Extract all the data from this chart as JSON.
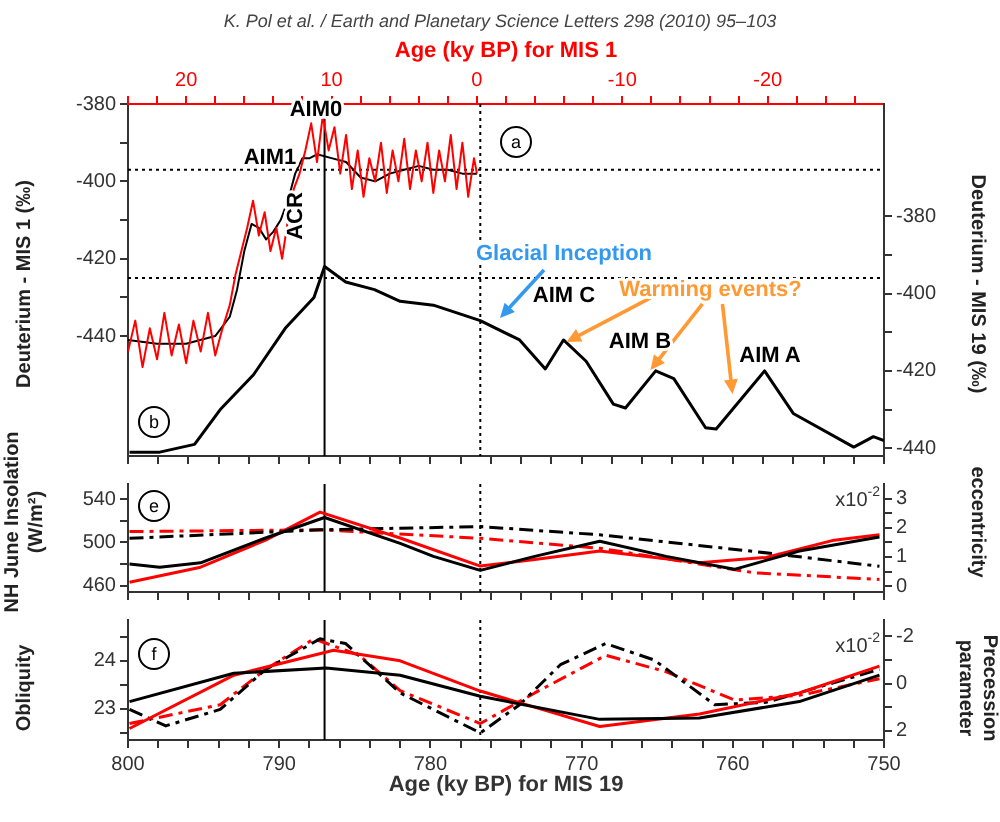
{
  "chart_data": [
    {
      "type": "line",
      "x2label": "Age (ky BP) for MIS 1",
      "ylabel": "Deuterium - MIS 1 (‰)",
      "y2label": "Deuterium - MIS 19 (‰)",
      "xlim": [
        800,
        750
      ],
      "xticks": [
        800,
        {
          "value": 798,
          "label": null
        },
        {
          "value": 796,
          "label": null
        },
        {
          "value": 794,
          "label": null
        },
        {
          "value": 792,
          "label": null
        },
        790,
        {
          "value": 788,
          "label": null
        },
        {
          "value": 786,
          "label": null
        },
        {
          "value": 784,
          "label": null
        },
        {
          "value": 782,
          "label": null
        },
        780,
        {
          "value": 778,
          "label": null
        },
        {
          "value": 776,
          "label": null
        },
        {
          "value": 774,
          "label": null
        },
        {
          "value": 772,
          "label": null
        },
        770,
        {
          "value": 768,
          "label": null
        },
        {
          "value": 766,
          "label": null
        },
        {
          "value": 764,
          "label": null
        },
        {
          "value": 762,
          "label": null
        },
        760,
        {
          "value": 758,
          "label": null
        },
        {
          "value": 756,
          "label": null
        },
        {
          "value": 754,
          "label": null
        },
        {
          "value": 752,
          "label": null
        },
        750
      ],
      "x2lim": [
        24,
        -28
      ],
      "x2ticks": [
        {
          "value": 24,
          "label": null
        },
        {
          "value": 22,
          "label": null
        },
        20,
        {
          "value": 18,
          "label": null
        },
        {
          "value": 16,
          "label": null
        },
        {
          "value": 14,
          "label": null
        },
        {
          "value": 12,
          "label": null
        },
        10,
        {
          "value": 8,
          "label": null
        },
        {
          "value": 6,
          "label": null
        },
        {
          "value": 4,
          "label": null
        },
        {
          "value": 2,
          "label": null
        },
        0,
        {
          "value": -2,
          "label": null
        },
        {
          "value": -4,
          "label": null
        },
        {
          "value": -6,
          "label": null
        },
        {
          "value": -8,
          "label": null
        },
        -10,
        {
          "value": -12,
          "label": null
        },
        {
          "value": -14,
          "label": null
        },
        {
          "value": -16,
          "label": null
        },
        {
          "value": -18,
          "label": null
        },
        -20,
        {
          "value": -22,
          "label": null
        },
        {
          "value": -24,
          "label": null
        },
        {
          "value": -26,
          "label": null
        }
      ],
      "ylim": [
        -471,
        -380
      ],
      "yticks": [
        -380,
        {
          "value": -390,
          "label": null
        },
        -400,
        {
          "value": -410,
          "label": null
        },
        -420,
        {
          "value": -430,
          "label": null
        },
        -440
      ],
      "y2lim": [
        -442,
        -351
      ],
      "y2ticks": [
        -380,
        {
          "value": -390,
          "label": null
        },
        -400,
        {
          "value": -410,
          "label": null
        },
        -420,
        {
          "value": -430,
          "label": null
        },
        -440
      ],
      "tick_labels": "y",
      "grid": false,
      "legend": false,
      "series": [
        {
          "color": "#ff0000",
          "axis": "x2",
          "x": [
            24,
            23.5,
            23,
            22.5,
            22,
            21.5,
            21,
            20.5,
            20,
            19.5,
            19,
            18.5,
            18,
            17.5,
            17,
            16.6,
            16.2,
            15.8,
            15.4,
            15,
            14.6,
            14.2,
            13.8,
            13.4,
            13,
            12.6,
            12.2,
            11.8,
            11.4,
            11,
            10.6,
            10.2,
            9.8,
            9.4,
            9,
            8.6,
            8.2,
            7.8,
            7.4,
            7,
            6.6,
            6.2,
            5.8,
            5.4,
            5,
            4.6,
            4.2,
            3.8,
            3.4,
            3,
            2.6,
            2.2,
            1.8,
            1.4,
            1,
            0.6,
            0.2,
            0
          ],
          "values": [
            -444,
            -436,
            -448,
            -438,
            -446,
            -434,
            -445,
            -437,
            -447,
            -436,
            -444,
            -434,
            -445,
            -438,
            -432,
            -424,
            -418,
            -412,
            -405,
            -414,
            -408,
            -418,
            -412,
            -420,
            -410,
            -402,
            -398,
            -392,
            -385,
            -395,
            -383,
            -392,
            -386,
            -398,
            -388,
            -402,
            -392,
            -404,
            -394,
            -400,
            -390,
            -403,
            -392,
            -400,
            -389,
            -402,
            -392,
            -400,
            -390,
            -403,
            -392,
            -400,
            -388,
            -402,
            -390,
            -404,
            -394,
            -398
          ]
        },
        {
          "color": "#000000",
          "axis": "x2",
          "x": [
            24,
            22,
            20,
            18,
            17,
            16.5,
            16,
            15.5,
            15,
            14.5,
            14,
            13.5,
            13,
            12.5,
            12,
            11.5,
            11,
            10,
            9,
            8,
            7,
            6,
            5,
            4,
            3,
            2,
            1,
            0
          ],
          "values": [
            -441,
            -442,
            -442,
            -440,
            -435,
            -428,
            -418,
            -411,
            -412,
            -415,
            -413,
            -410,
            -405,
            -398,
            -394,
            -394,
            -393,
            -394,
            -395,
            -399,
            -400,
            -398,
            -397,
            -396,
            -397,
            -397,
            -398,
            -398
          ]
        },
        {
          "color": "#000000",
          "axis": "y2",
          "x": [
            799.9,
            797.9,
            795.6,
            793.9,
            791.7,
            789.6,
            787.7,
            787,
            785.6,
            783.7,
            782,
            779.8,
            776.7,
            774.1,
            772.4,
            771.2,
            769.7,
            767.9,
            767.1,
            765.1,
            763.9,
            761.8,
            761.1,
            757.9,
            756,
            752,
            750.7,
            750
          ],
          "values": [
            -441,
            -441,
            -439,
            -430,
            -421,
            -409,
            -401,
            -393,
            -397,
            -399,
            -402,
            -403,
            -407,
            -412,
            -419.5,
            -412,
            -417.5,
            -428.6,
            -429.6,
            -420,
            -422,
            -434.7,
            -435,
            -420,
            -431,
            -439.7,
            -437,
            -438
          ]
        }
      ],
      "ref_lines": [
        {
          "axis": "x",
          "value": 787,
          "line_style": "solid",
          "color": "#000000"
        },
        {
          "axis": "x",
          "value": 776.7,
          "line_style": "dotted",
          "color": "#000000"
        },
        {
          "axis": "y",
          "value": -397,
          "line_style": "dotted",
          "color": "#000000"
        },
        {
          "axis": "y2",
          "value": -396,
          "line_style": "dotted",
          "color": "#000000"
        }
      ],
      "annotations": [
        "K. Pol et al. / Earth and Planetary Science Letters 298 (2010) 95–103",
        "a",
        "b",
        "AIM0",
        "AIM1",
        "ACR",
        "Glacial Inception",
        {
          "text": "Warming events?",
          "x": 771,
          "y": -441
        },
        "AIM C",
        "AIM B",
        "AIM A"
      ]
    },
    {
      "type": "line",
      "ylabel": "NH June Insolation (W/m²)",
      "y2label": "eccentricity",
      "xlim": [
        800,
        750
      ],
      "xticks": [
        800,
        {
          "value": 798,
          "label": null
        },
        {
          "value": 796,
          "label": null
        },
        {
          "value": 794,
          "label": null
        },
        {
          "value": 792,
          "label": null
        },
        790,
        {
          "value": 788,
          "label": null
        },
        {
          "value": 786,
          "label": null
        },
        {
          "value": 784,
          "label": null
        },
        {
          "value": 782,
          "label": null
        },
        780,
        {
          "value": 778,
          "label": null
        },
        {
          "value": 776,
          "label": null
        },
        {
          "value": 774,
          "label": null
        },
        {
          "value": 772,
          "label": null
        },
        770,
        {
          "value": 768,
          "label": null
        },
        {
          "value": 766,
          "label": null
        },
        {
          "value": 764,
          "label": null
        },
        {
          "value": 762,
          "label": null
        },
        760,
        {
          "value": 758,
          "label": null
        },
        {
          "value": 756,
          "label": null
        },
        {
          "value": 754,
          "label": null
        },
        {
          "value": 752,
          "label": null
        },
        750
      ],
      "ylim": [
        454,
        554
      ],
      "yticks": [
        460,
        {
          "value": 480,
          "label": null
        },
        500,
        {
          "value": 520,
          "label": null
        },
        540
      ],
      "y2lim": [
        -0.2,
        3.5
      ],
      "y2ticks": [
        0,
        {
          "value": 0.5,
          "label": null
        },
        1,
        {
          "value": 1.5,
          "label": null
        },
        2,
        {
          "value": 2.5,
          "label": null
        },
        3
      ],
      "tick_labels": "y",
      "grid": false,
      "legend": false,
      "series": [
        {
          "color": "#000000",
          "x": [
            799.9,
            797.9,
            795.2,
            790.9,
            787,
            782,
            779.8,
            776.7,
            773.1,
            768.8,
            764.4,
            759.9,
            755.6,
            750.3
          ],
          "values": [
            480,
            477,
            481,
            504,
            523,
            499,
            487,
            474,
            487,
            501,
            487,
            475,
            492,
            505
          ]
        },
        {
          "color": "#ff0000",
          "x": [
            799.9,
            795.2,
            790.9,
            787.3,
            782,
            776.7,
            773.1,
            768.8,
            762.2,
            757.8,
            753.3,
            750.3
          ],
          "values": [
            463,
            477,
            502,
            528,
            504,
            478,
            484,
            492,
            481,
            486,
            502,
            507
          ]
        },
        {
          "color": "#000000",
          "axis": "y2",
          "line_style": "dashed",
          "x": [
            799.9,
            787.3,
            776.7,
            768.8,
            758.6,
            750.3
          ],
          "values": [
            1.64,
            1.93,
            2.04,
            1.76,
            1.19,
            0.68
          ]
        },
        {
          "color": "#ff0000",
          "axis": "y2",
          "line_style": "dashed",
          "x": [
            799.9,
            787.3,
            776.7,
            768.8,
            758.6,
            750.3
          ],
          "values": [
            1.87,
            1.93,
            1.64,
            1.3,
            0.46,
            0.23
          ]
        }
      ],
      "ref_lines": [
        {
          "axis": "x",
          "value": 787,
          "line_style": "solid",
          "color": "#000000"
        },
        {
          "axis": "x",
          "value": 776.7,
          "line_style": "dotted",
          "color": "#000000"
        }
      ],
      "annotations": [
        "e",
        "x10$^{-2}$"
      ]
    },
    {
      "type": "line",
      "xlabel": "Age (ky BP) for MIS 19",
      "ylabel": "Obliquity",
      "y2label": "Precession parameter",
      "xlim": [
        800,
        750
      ],
      "xticks": [
        800,
        {
          "value": 798,
          "label": null
        },
        {
          "value": 796,
          "label": null
        },
        {
          "value": 794,
          "label": null
        },
        {
          "value": 792,
          "label": null
        },
        790,
        {
          "value": 788,
          "label": null
        },
        {
          "value": 786,
          "label": null
        },
        {
          "value": 784,
          "label": null
        },
        {
          "value": 782,
          "label": null
        },
        780,
        {
          "value": 778,
          "label": null
        },
        {
          "value": 776,
          "label": null
        },
        {
          "value": 774,
          "label": null
        },
        {
          "value": 772,
          "label": null
        },
        770,
        {
          "value": 768,
          "label": null
        },
        {
          "value": 766,
          "label": null
        },
        {
          "value": 764,
          "label": null
        },
        {
          "value": 762,
          "label": null
        },
        760,
        {
          "value": 758,
          "label": null
        },
        {
          "value": 756,
          "label": null
        },
        {
          "value": 754,
          "label": null
        },
        {
          "value": 752,
          "label": null
        },
        750
      ],
      "ylim": [
        22.35,
        24.85
      ],
      "yticks": [
        {
          "value": 22.5,
          "label": null
        },
        23,
        {
          "value": 23.5,
          "label": null
        },
        24,
        {
          "value": 24.5,
          "label": null
        }
      ],
      "y2lim": [
        2.4,
        -2.7
      ],
      "y2ticks": [
        -2,
        {
          "value": -1,
          "label": null
        },
        0,
        {
          "value": 1,
          "label": null
        },
        2
      ],
      "grid": false,
      "legend": false,
      "series": [
        {
          "color": "#000000",
          "x": [
            799.9,
            793,
            786.9,
            782,
            776.7,
            768.8,
            762.2,
            755.6,
            750.3
          ],
          "values": [
            23.15,
            23.74,
            23.85,
            23.7,
            23.26,
            22.78,
            22.81,
            23.15,
            23.7
          ]
        },
        {
          "color": "#ff0000",
          "x": [
            799.9,
            793,
            786.4,
            782,
            776.7,
            768.8,
            762.2,
            755.6,
            750.3
          ],
          "values": [
            22.59,
            23.7,
            24.22,
            24,
            23.37,
            22.63,
            22.89,
            23.33,
            23.89
          ]
        },
        {
          "color": "#000000",
          "axis": "y2",
          "line_style": "dashed",
          "x": [
            799.9,
            797.5,
            793.9,
            790.9,
            787.3,
            785.6,
            782,
            776.7,
            774.1,
            771.4,
            768.4,
            765.2,
            761.2,
            757.8,
            750.3
          ],
          "values": [
            1.1,
            1.8,
            1.1,
            -0.6,
            -1.9,
            -1.7,
            0.4,
            2.1,
            0.9,
            -0.8,
            -1.7,
            -1,
            0.9,
            0.8,
            -0.6
          ]
        },
        {
          "color": "#ff0000",
          "axis": "y2",
          "line_style": "dashed",
          "x": [
            799.9,
            793.9,
            790.9,
            787.7,
            784.7,
            782,
            776.7,
            773.1,
            768.4,
            764.4,
            759.9,
            755.6,
            750.3
          ],
          "values": [
            1.7,
            0.9,
            -0.6,
            -1.9,
            -1.2,
            0.3,
            1.7,
            0.4,
            -1.2,
            -0.5,
            0.7,
            0.5,
            -0.2
          ]
        }
      ],
      "ref_lines": [
        {
          "axis": "x",
          "value": 787,
          "line_style": "solid",
          "color": "#000000"
        },
        {
          "axis": "x",
          "value": 776.7,
          "line_style": "dotted",
          "color": "#000000"
        }
      ],
      "annotations": [
        "f",
        "x10$^{-2}$"
      ]
    }
  ]
}
